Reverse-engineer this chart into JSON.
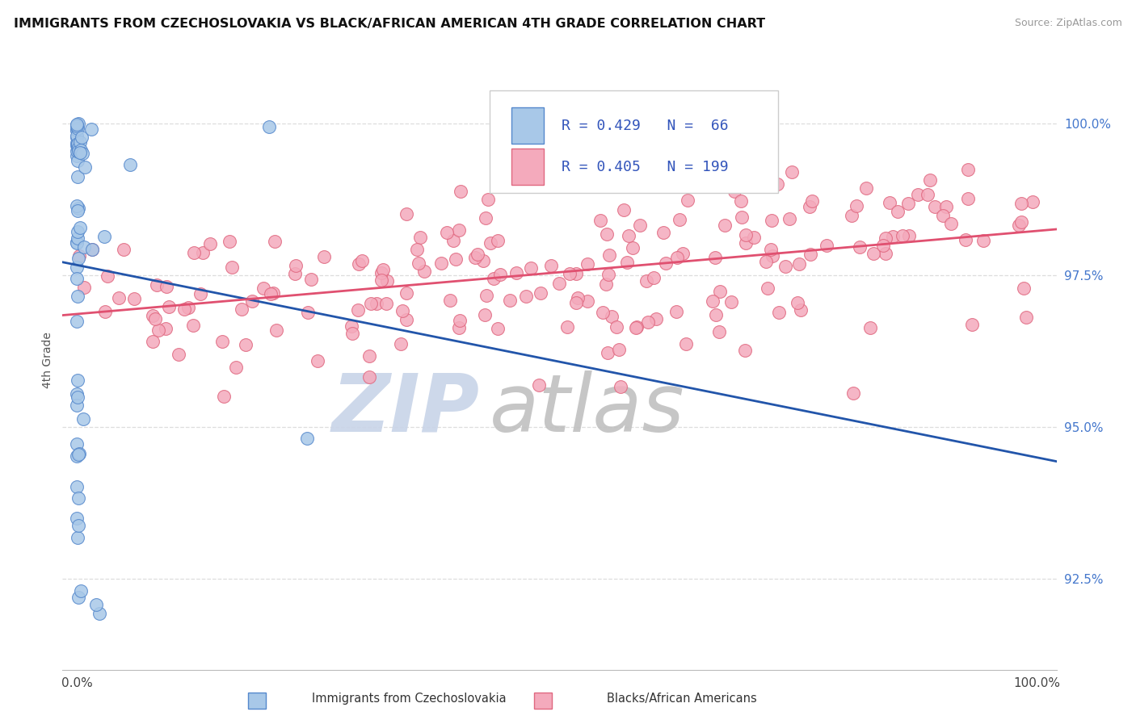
{
  "title": "IMMIGRANTS FROM CZECHOSLOVAKIA VS BLACK/AFRICAN AMERICAN 4TH GRADE CORRELATION CHART",
  "source": "Source: ZipAtlas.com",
  "ylabel": "4th Grade",
  "legend_r1": "R = 0.429",
  "legend_n1": "N =  66",
  "legend_r2": "R = 0.405",
  "legend_n2": "N = 199",
  "color_blue_fill": "#a8c8e8",
  "color_blue_edge": "#5588cc",
  "color_pink_fill": "#f4aabc",
  "color_pink_edge": "#e06880",
  "color_line_blue": "#2255aa",
  "color_line_pink": "#e05070",
  "y_min": 91.0,
  "y_max": 101.2,
  "x_min": -1.5,
  "x_max": 102.0,
  "yticks": [
    92.5,
    95.0,
    97.5,
    100.0
  ],
  "ytick_labels": [
    "92.5%",
    "95.0%",
    "97.5%",
    "100.0%"
  ],
  "xticks": [
    0,
    100
  ],
  "xtick_labels": [
    "0.0%",
    "100.0%"
  ],
  "grid_color": "#dddddd",
  "watermark_zip_color": "#c8d4e8",
  "watermark_atlas_color": "#c0c0c0"
}
